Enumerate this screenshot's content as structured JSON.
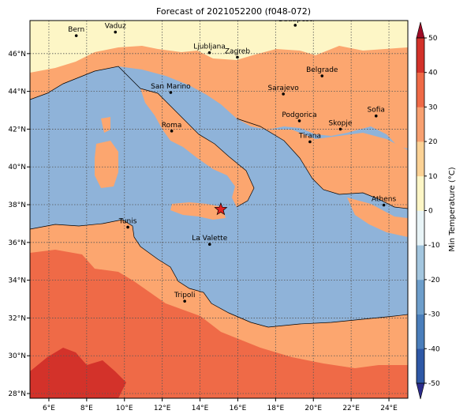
{
  "title": "Forecast of 2021052200 (f048-072)",
  "map": {
    "lon_ticks": [
      "6°E",
      "8°E",
      "10°E",
      "12°E",
      "14°E",
      "16°E",
      "18°E",
      "20°E",
      "22°E",
      "24°E"
    ],
    "lat_ticks": [
      "28°N",
      "30°N",
      "32°N",
      "34°N",
      "36°N",
      "38°N",
      "40°N",
      "42°N",
      "44°N",
      "46°N"
    ],
    "gridlines": true,
    "marker": {
      "name": "star",
      "color": "#e32020"
    },
    "cities": [
      "Bern",
      "Vaduz",
      "Budapest",
      "Ljubljana",
      "Zagreb",
      "Belgrade",
      "San Marino",
      "Sarajevo",
      "Sofia",
      "Podgorica",
      "Skopje",
      "Roma",
      "Tirana",
      "Athens",
      "Tunis",
      "La Valette",
      "Tripoli"
    ]
  },
  "colorbar": {
    "label": "Min Temperature (°C)",
    "ticks": [
      "-50",
      "-40",
      "-30",
      "-20",
      "-10",
      "0",
      "10",
      "20",
      "30",
      "40",
      "50"
    ],
    "colors": [
      "#2c2c8c",
      "#2e58a6",
      "#4a7ebb",
      "#6d9ecb",
      "#a3c6df",
      "#e8f4f7",
      "#fdf6c6",
      "#fcd295",
      "#f8a070",
      "#ef6a47",
      "#d3322a",
      "#9e0b26"
    ],
    "legend_colors": {
      "sea_2_to_-10_band": "#8fb3d9",
      "cold_band_0_10": "#fdf6c6",
      "band_10_20": "#fca66f",
      "band_20_30": "#ef6a47",
      "band_30_40": "#d3322a"
    }
  }
}
